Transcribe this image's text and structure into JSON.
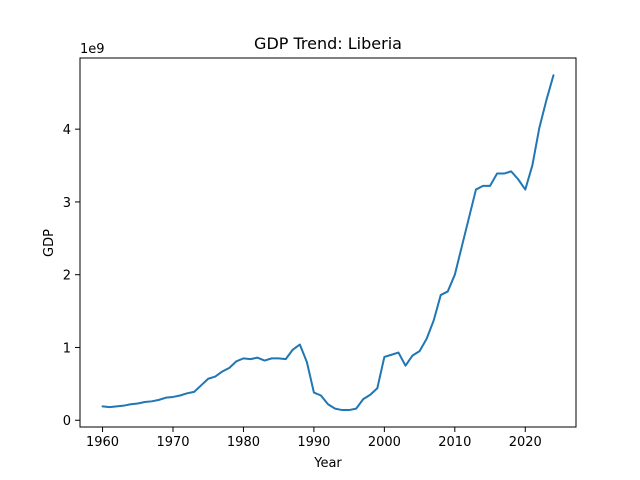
{
  "chart_data": {
    "type": "line",
    "title": "GDP Trend: Liberia",
    "xlabel": "Year",
    "ylabel": "GDP",
    "y_offset_label": "1e9",
    "xlim": [
      1956.8,
      2027.2
    ],
    "ylim": [
      -0.093,
      4.978
    ],
    "x_ticks": [
      1960,
      1970,
      1980,
      1990,
      2000,
      2010,
      2020
    ],
    "y_ticks": [
      0,
      1,
      2,
      3,
      4
    ],
    "y_unit_scale": 1000000000,
    "grid": false,
    "line_color": "#1f77b4",
    "series": [
      {
        "x": [
          1960,
          1961,
          1962,
          1963,
          1964,
          1965,
          1966,
          1967,
          1968,
          1969,
          1970,
          1971,
          1972,
          1973,
          1974,
          1975,
          1976,
          1977,
          1978,
          1979,
          1980,
          1981,
          1982,
          1983,
          1984,
          1985,
          1986,
          1987,
          1988,
          1989,
          1990,
          1991,
          1992,
          1993,
          1994,
          1995,
          1996,
          1997,
          1998,
          1999,
          2000,
          2001,
          2002,
          2003,
          2004,
          2005,
          2006,
          2007,
          2008,
          2009,
          2010,
          2011,
          2012,
          2013,
          2014,
          2015,
          2016,
          2017,
          2018,
          2019,
          2020,
          2021,
          2022,
          2023,
          2024
        ],
        "values": [
          0.19,
          0.18,
          0.19,
          0.2,
          0.22,
          0.23,
          0.25,
          0.26,
          0.28,
          0.31,
          0.32,
          0.34,
          0.37,
          0.39,
          0.48,
          0.57,
          0.6,
          0.67,
          0.72,
          0.81,
          0.85,
          0.84,
          0.86,
          0.82,
          0.85,
          0.85,
          0.84,
          0.97,
          1.04,
          0.8,
          0.38,
          0.34,
          0.22,
          0.16,
          0.14,
          0.14,
          0.16,
          0.29,
          0.35,
          0.44,
          0.87,
          0.9,
          0.93,
          0.75,
          0.89,
          0.95,
          1.12,
          1.37,
          1.72,
          1.77,
          2.0,
          2.39,
          2.78,
          3.17,
          3.22,
          3.22,
          3.39,
          3.39,
          3.42,
          3.31,
          3.17,
          3.5,
          4.02,
          4.4,
          4.74
        ]
      }
    ]
  }
}
